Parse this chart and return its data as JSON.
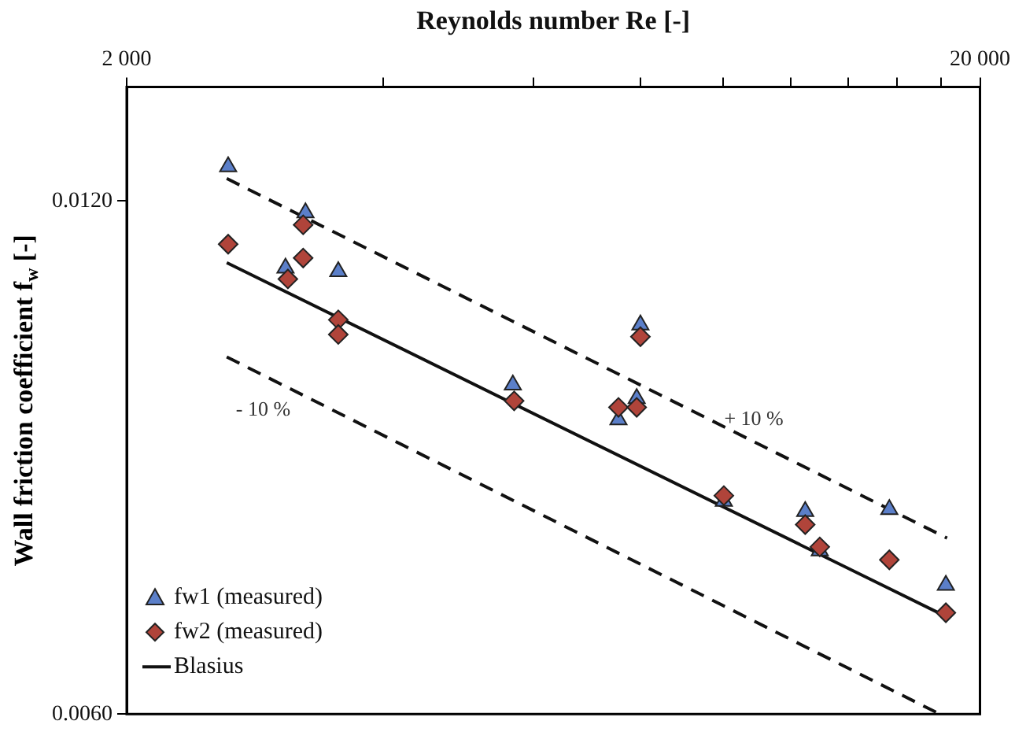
{
  "chart_data": {
    "type": "scatter",
    "xlabel": "Reynolds number Re [-]",
    "ylabel": "Wall friction coefficient f$_{w}$ [-]",
    "log": "xy",
    "xlim": [
      2000,
      20000
    ],
    "ylim": [
      0.006,
      0.014
    ],
    "xticks": [
      {
        "value": 2000,
        "label": "2 000"
      },
      {
        "value": 4000,
        "label": null
      },
      {
        "value": 6000,
        "label": null
      },
      {
        "value": 8000,
        "label": null
      },
      {
        "value": 10000,
        "label": null
      },
      {
        "value": 12000,
        "label": null
      },
      {
        "value": 14000,
        "label": null
      },
      {
        "value": 16000,
        "label": null
      },
      {
        "value": 18000,
        "label": null
      },
      {
        "value": 20000,
        "label": "20 000"
      }
    ],
    "yticks": [
      {
        "value": 0.006,
        "label": "0.0060"
      },
      {
        "value": 0.012,
        "label": "0.0120"
      }
    ],
    "grid": false,
    "legend": "bottom left",
    "series": [
      {
        "name": "fw1 (measured)",
        "marker": "triangle",
        "color": "#5b7fc9",
        "x": [
          2630,
          3240,
          3070,
          3540,
          5670,
          8000,
          7540,
          7920,
          10020,
          12480,
          12980,
          15660,
          18240
        ],
        "values": [
          0.01257,
          0.01181,
          0.01096,
          0.01091,
          0.00936,
          0.01015,
          0.00893,
          0.00919,
          0.008,
          0.00789,
          0.00748,
          0.00791,
          0.00714
        ]
      },
      {
        "name": "fw2 (measured)",
        "marker": "diamond",
        "color": "#b0443a",
        "x": [
          2630,
          3220,
          3220,
          3090,
          3540,
          3540,
          5690,
          8000,
          7540,
          7920,
          10020,
          12480,
          12980,
          15660,
          18240
        ],
        "values": [
          0.01132,
          0.01162,
          0.01111,
          0.0108,
          0.01022,
          0.01002,
          0.00916,
          0.00999,
          0.00908,
          0.00908,
          0.00806,
          0.00775,
          0.00752,
          0.00739,
          0.00688
        ]
      },
      {
        "name": "Blasius",
        "type": "line",
        "marker": "none",
        "line_style": "solid",
        "color": "#111111",
        "x": [
          2620,
          18200
        ],
        "values": [
          0.01104,
          0.00685
        ]
      },
      {
        "type": "line",
        "marker": "none",
        "line_style": "dashed",
        "color": "#111111",
        "x": [
          2620,
          18300
        ],
        "values": [
          0.01237,
          0.00761
        ]
      },
      {
        "type": "line",
        "marker": "none",
        "line_style": "dashed",
        "color": "#111111",
        "x": [
          2620,
          17940
        ],
        "values": [
          0.00972,
          0.006
        ]
      }
    ],
    "annotations": [
      "- 10 %",
      "+ 10 %"
    ]
  }
}
